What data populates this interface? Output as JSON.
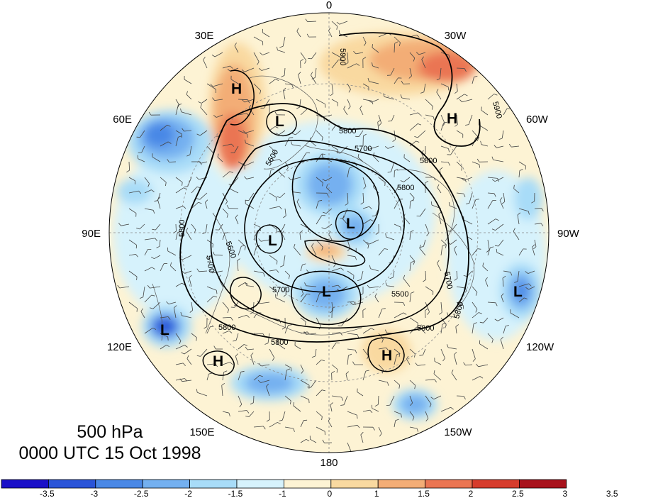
{
  "title": {
    "level": "500 hPa",
    "time": "0000 UTC 15 Oct 1998"
  },
  "longitude_labels": [
    "0",
    "30W",
    "60W",
    "90W",
    "120W",
    "150W",
    "180",
    "150E",
    "120E",
    "90E",
    "60E",
    "30E"
  ],
  "contour_labels": [
    "5900",
    "5900",
    "5800",
    "5700",
    "5800",
    "5600",
    "5800",
    "5700",
    "5600",
    "5500",
    "5800",
    "5700",
    "5800",
    "5800",
    "5800",
    "5700",
    "5800"
  ],
  "centers": [
    {
      "type": "H",
      "label": "H"
    },
    {
      "type": "H",
      "label": "H"
    },
    {
      "type": "L",
      "label": "L"
    },
    {
      "type": "L",
      "label": "L"
    },
    {
      "type": "L",
      "label": "L"
    },
    {
      "type": "L",
      "label": "L"
    },
    {
      "type": "L",
      "label": "L"
    },
    {
      "type": "L",
      "label": "L"
    },
    {
      "type": "H",
      "label": "H"
    },
    {
      "type": "H",
      "label": "H"
    }
  ],
  "colorbar": {
    "colors": [
      "#1a10c8",
      "#2a54d8",
      "#4a88e6",
      "#74b0f0",
      "#a8dcf8",
      "#d6f2fc",
      "#fdf3d4",
      "#f9d9a0",
      "#f3ad76",
      "#ea7552",
      "#d63c2c",
      "#a8121c"
    ],
    "tick_labels": [
      "-3.5",
      "-3",
      "-2.5",
      "-2",
      "-1.5",
      "-1",
      "0",
      "1",
      "1.5",
      "2",
      "2.5",
      "3",
      "3.5"
    ]
  },
  "anomaly_palette": {
    "neg3": "#2a54d8",
    "neg2": "#4a88e6",
    "neg15": "#74b0f0",
    "neg1": "#a8dcf8",
    "pos1": "#f9d9a0",
    "pos15": "#f3ad76",
    "pos2": "#ea7552",
    "pos25": "#d63c2c",
    "base": "#fdf3d4",
    "light_blue": "#d6f2fc"
  }
}
